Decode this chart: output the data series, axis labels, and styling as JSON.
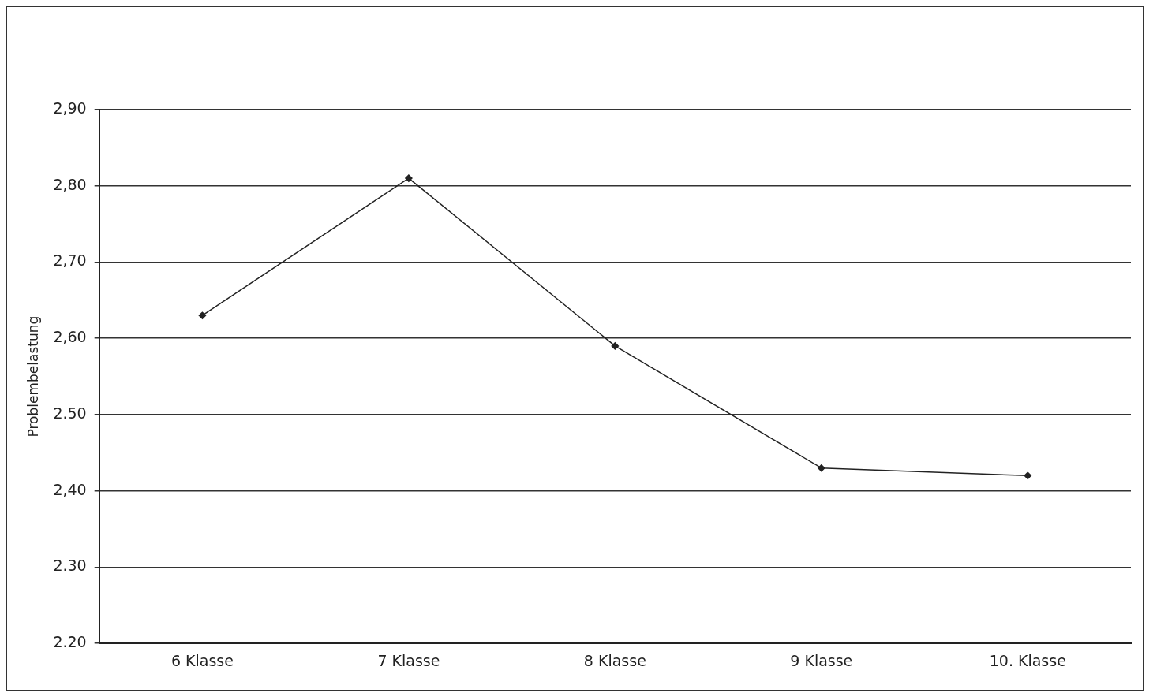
{
  "chart_data": {
    "type": "line",
    "ylabel": "Problembelastung",
    "categories": [
      "6 Klasse",
      "7 Klasse",
      "8 Klasse",
      "9 Klasse",
      "10. Klasse"
    ],
    "series": [
      {
        "color": "#222222",
        "values": [
          2.63,
          2.81,
          2.59,
          2.43,
          2.42
        ]
      }
    ],
    "ylim": [
      2.2,
      2.9
    ],
    "yticks": [
      {
        "value": 2.2,
        "label": "2.20"
      },
      {
        "value": 2.3,
        "label": "2.30"
      },
      {
        "value": 2.4,
        "label": "2,40"
      },
      {
        "value": 2.5,
        "label": "2.50"
      },
      {
        "value": 2.6,
        "label": "2,60"
      },
      {
        "value": 2.7,
        "label": "2,70"
      },
      {
        "value": 2.8,
        "label": "2,80"
      },
      {
        "value": 2.9,
        "label": "2,90"
      }
    ],
    "grid": "y",
    "legend": false,
    "marker": "diamond",
    "line_style": "solid"
  }
}
